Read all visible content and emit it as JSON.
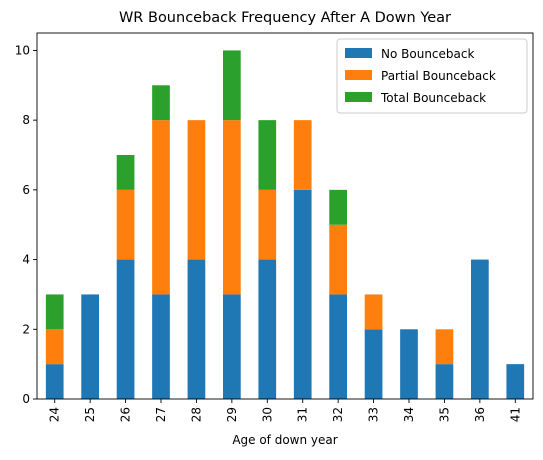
{
  "chart_data": {
    "type": "bar",
    "stacked": true,
    "title": "WR Bounceback Frequency After A Down Year",
    "xlabel": "Age of down year",
    "ylabel": "",
    "ylim": [
      0,
      10.5
    ],
    "yticks": [
      0,
      2,
      4,
      6,
      8,
      10
    ],
    "categories": [
      "24",
      "25",
      "26",
      "27",
      "28",
      "29",
      "30",
      "31",
      "32",
      "33",
      "34",
      "35",
      "36",
      "41"
    ],
    "series": [
      {
        "name": "No Bounceback",
        "color": "#1f77b4",
        "values": [
          1,
          3,
          4,
          3,
          4,
          3,
          4,
          6,
          3,
          2,
          2,
          1,
          4,
          1
        ]
      },
      {
        "name": "Partial Bounceback",
        "color": "#ff7f0e",
        "values": [
          1,
          0,
          2,
          5,
          4,
          5,
          2,
          2,
          2,
          1,
          0,
          1,
          0,
          0
        ]
      },
      {
        "name": "Total Bounceback",
        "color": "#2ca02c",
        "values": [
          1,
          0,
          1,
          1,
          0,
          2,
          2,
          0,
          1,
          0,
          0,
          0,
          0,
          0
        ]
      }
    ],
    "legend": "top-right",
    "grid": false
  }
}
